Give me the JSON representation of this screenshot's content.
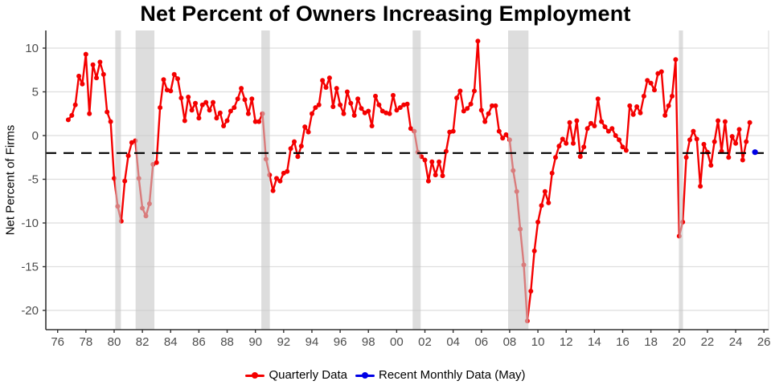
{
  "title": "Net Percent of Owners Increasing Employment",
  "y_axis": {
    "label": "Net Percent of Firms",
    "ticks": [
      10,
      5,
      0,
      -5,
      -10,
      -15,
      -20
    ]
  },
  "x_axis": {
    "tick_labels": [
      "76",
      "78",
      "80",
      "82",
      "84",
      "86",
      "88",
      "90",
      "92",
      "94",
      "96",
      "98",
      "00",
      "02",
      "04",
      "06",
      "08",
      "10",
      "12",
      "14",
      "16",
      "18",
      "20",
      "22",
      "24",
      "26"
    ],
    "tick_years": [
      1976,
      1978,
      1980,
      1982,
      1984,
      1986,
      1988,
      1990,
      1992,
      1994,
      1996,
      1998,
      2000,
      2002,
      2004,
      2006,
      2008,
      2010,
      2012,
      2014,
      2016,
      2018,
      2020,
      2022,
      2024,
      2026
    ]
  },
  "legend": {
    "quarterly_label": "Quarterly Data",
    "monthly_label": "Recent Monthly Data (May)"
  },
  "colors": {
    "quarterly": "#F40000",
    "monthly": "#0000E6",
    "recession": "#c8c8c8",
    "grid": "#dedede",
    "axis": "#333333",
    "tick_text": "#4d4d4d",
    "dashed": "#000000"
  },
  "chart_data": {
    "type": "line",
    "title": "Net Percent of Owners Increasing Employment",
    "ylabel": "Net Percent of Firms",
    "ylim": [
      -23,
      12
    ],
    "xlim": [
      1975.2,
      2026.4
    ],
    "grid": true,
    "legend_position": "bottom",
    "reference_line": {
      "value": -2,
      "style": "dashed",
      "color": "#000000"
    },
    "recessions": [
      {
        "from": 1980.08,
        "to": 1980.48
      },
      {
        "from": 1981.52,
        "to": 1982.85
      },
      {
        "from": 1990.42,
        "to": 1991.02
      },
      {
        "from": 2001.13,
        "to": 2001.7
      },
      {
        "from": 2007.89,
        "to": 2009.33
      },
      {
        "from": 2019.98,
        "to": 2020.27
      }
    ],
    "series": [
      {
        "name": "Quarterly Data",
        "color": "#F40000",
        "start_t": 1976.75,
        "step": 0.25,
        "values": [
          1.8,
          2.3,
          3.5,
          6.8,
          5.9,
          9.3,
          2.5,
          8.1,
          6.6,
          8.4,
          7.0,
          2.7,
          1.6,
          -4.9,
          -8.1,
          -9.8,
          -5.2,
          -2.3,
          -0.8,
          -0.6,
          -4.9,
          -8.3,
          -9.2,
          -7.8,
          -3.3,
          -3.1,
          3.2,
          6.4,
          5.2,
          5.1,
          7.0,
          6.5,
          4.3,
          1.7,
          4.4,
          2.9,
          3.7,
          2.0,
          3.5,
          3.8,
          2.9,
          3.8,
          2.0,
          2.6,
          1.1,
          1.7,
          2.8,
          3.2,
          4.2,
          5.4,
          4.1,
          2.5,
          4.2,
          1.6,
          1.6,
          2.5,
          -2.7,
          -4.5,
          -6.3,
          -4.9,
          -5.2,
          -4.3,
          -4.1,
          -1.5,
          -0.7,
          -2.4,
          -1.2,
          1.0,
          0.4,
          2.5,
          3.2,
          3.5,
          6.3,
          5.5,
          6.6,
          3.3,
          5.4,
          3.5,
          2.5,
          5.0,
          3.7,
          2.3,
          4.2,
          3.1,
          2.6,
          2.8,
          1.1,
          4.5,
          3.5,
          2.8,
          2.6,
          2.5,
          4.6,
          2.9,
          3.2,
          3.5,
          3.6,
          0.8,
          0.5,
          -1.9,
          -2.4,
          -2.8,
          -5.2,
          -3.0,
          -4.5,
          -3.0,
          -4.6,
          -1.8,
          0.4,
          0.5,
          4.3,
          5.1,
          2.8,
          3.1,
          3.6,
          5.1,
          10.8,
          2.9,
          1.6,
          2.5,
          3.4,
          3.4,
          0.5,
          -0.3,
          0.1,
          -0.5,
          -4.0,
          -6.4,
          -10.7,
          -14.8,
          -21.2,
          -17.8,
          -13.2,
          -9.9,
          -8.0,
          -6.4,
          -7.7,
          -4.3,
          -2.5,
          -1.2,
          -0.4,
          -0.9,
          1.5,
          -0.9,
          1.7,
          -2.4,
          -1.3,
          0.8,
          1.4,
          1.1,
          4.2,
          1.6,
          1.0,
          0.5,
          0.8,
          0.0,
          -0.5,
          -1.3,
          -1.7,
          3.4,
          2.4,
          3.3,
          2.6,
          4.5,
          6.3,
          6.0,
          5.2,
          7.1,
          7.3,
          2.3,
          3.4,
          4.5,
          8.7,
          -11.5,
          -9.9,
          -2.5,
          -0.5,
          0.5,
          -0.4,
          -5.8,
          -1.0,
          -1.9,
          -3.4,
          -0.7,
          1.7,
          -1.8,
          1.6,
          -2.5,
          -0.1,
          -0.9,
          0.7,
          -2.8,
          -0.7,
          1.5
        ]
      }
    ],
    "monthly_point": {
      "name": "Recent Monthly Data (May)",
      "color": "#0000E6",
      "t": 2025.37,
      "value": -1.9
    }
  }
}
